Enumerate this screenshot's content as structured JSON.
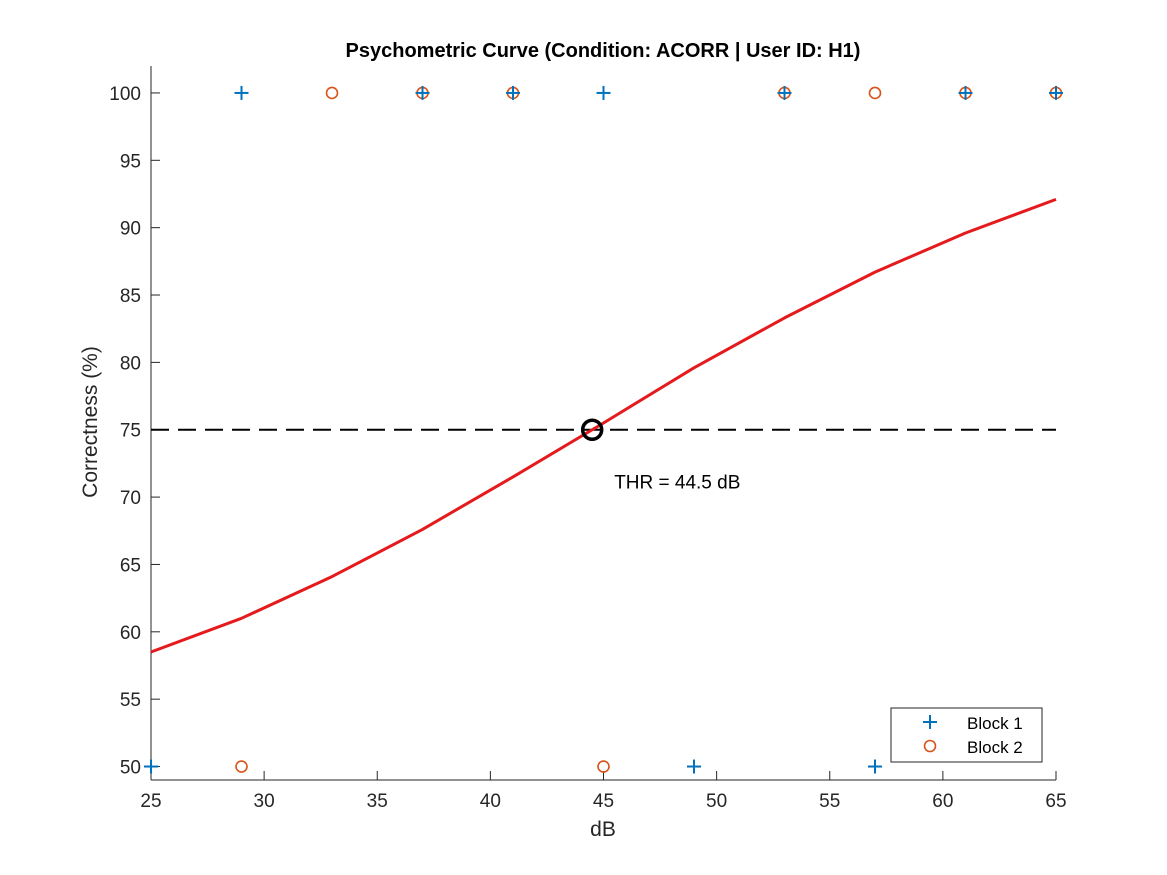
{
  "chart_data": {
    "type": "scatter",
    "title": "Psychometric Curve (Condition: ACORR | User ID: H1)",
    "xlabel": "dB",
    "ylabel": "Correctness (%)",
    "xlim": [
      25,
      65
    ],
    "ylim": [
      49,
      102
    ],
    "x_ticks": [
      25,
      30,
      35,
      40,
      45,
      50,
      55,
      60,
      65
    ],
    "y_ticks": [
      50,
      55,
      60,
      65,
      70,
      75,
      80,
      85,
      90,
      95,
      100
    ],
    "grid": false,
    "legend_position": "bottom-right",
    "series": [
      {
        "name": "Block 1",
        "marker": "plus",
        "color": "#0072BD",
        "points": [
          {
            "x": 25,
            "y": 50
          },
          {
            "x": 29,
            "y": 100
          },
          {
            "x": 37,
            "y": 100
          },
          {
            "x": 41,
            "y": 100
          },
          {
            "x": 45,
            "y": 100
          },
          {
            "x": 49,
            "y": 50
          },
          {
            "x": 53,
            "y": 100
          },
          {
            "x": 57,
            "y": 50
          },
          {
            "x": 61,
            "y": 100
          },
          {
            "x": 65,
            "y": 100
          }
        ]
      },
      {
        "name": "Block 2",
        "marker": "circle",
        "color": "#D95319",
        "points": [
          {
            "x": 29,
            "y": 50
          },
          {
            "x": 33,
            "y": 100
          },
          {
            "x": 37,
            "y": 100
          },
          {
            "x": 41,
            "y": 100
          },
          {
            "x": 45,
            "y": 50
          },
          {
            "x": 53,
            "y": 100
          },
          {
            "x": 57,
            "y": 100
          },
          {
            "x": 61,
            "y": 100
          },
          {
            "x": 65,
            "y": 100
          }
        ]
      }
    ],
    "fit_curve": {
      "color": "#E41A1C",
      "points": [
        {
          "x": 25,
          "y": 58.5
        },
        {
          "x": 29,
          "y": 61.0
        },
        {
          "x": 33,
          "y": 64.1
        },
        {
          "x": 37,
          "y": 67.6
        },
        {
          "x": 41,
          "y": 71.5
        },
        {
          "x": 45,
          "y": 75.5
        },
        {
          "x": 49,
          "y": 79.6
        },
        {
          "x": 53,
          "y": 83.3
        },
        {
          "x": 57,
          "y": 86.7
        },
        {
          "x": 61,
          "y": 89.6
        },
        {
          "x": 65,
          "y": 92.1
        }
      ]
    },
    "reference_line": {
      "y": 75,
      "style": "dashed",
      "color": "#000000"
    },
    "threshold": {
      "x": 44.5,
      "y": 75,
      "label": "THR = 44.5 dB"
    }
  }
}
